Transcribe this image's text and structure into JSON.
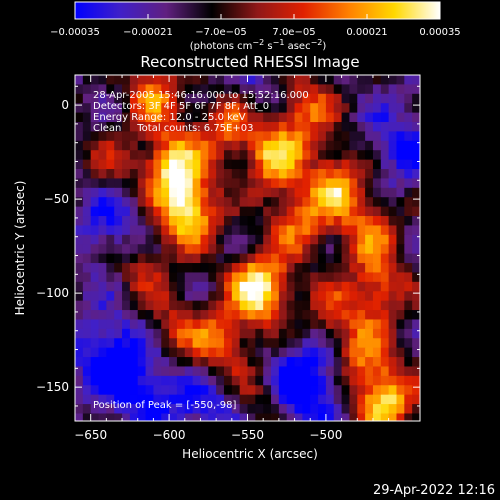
{
  "chart_data": {
    "type": "heatmap",
    "title": "Reconstructed RHESSI Image",
    "xlabel": "Heliocentric X (arcsec)",
    "ylabel": "Heliocentric Y (arcsec)",
    "xlim": [
      -660,
      -440
    ],
    "ylim": [
      -168,
      16
    ],
    "xticks": [
      -650,
      -600,
      -550,
      -500
    ],
    "yticks": [
      0,
      -50,
      -100,
      -150
    ],
    "colorbar": {
      "range": [
        -0.00035,
        0.00035
      ],
      "ticks": [
        "-0.00035",
        "-0.00021",
        "-7.0e-05",
        "7.0e-05",
        "0.00021",
        "0.00035"
      ],
      "unit_label": "(photons cm^-2 s^-1 asec^-2)",
      "colormap": [
        "#0000ff",
        "#4020c8",
        "#602080",
        "#000000",
        "#901818",
        "#e02000",
        "#ff8000",
        "#ffd800",
        "#ffffff"
      ]
    },
    "annotations": {
      "time_range": "28-Apr-2005 15:46:16.000 to 15:52:16.000",
      "detectors": "Detectors: 3F 4F 5F 6F 7F 8F, Att_0",
      "energy_range": "Energy Range: 12.0 - 25.0 keV",
      "method_counts": "Clean     Total counts: 6.75E+03",
      "peak": "Position of Peak = [-550,-98]"
    },
    "peak_position": [
      -550,
      -98
    ],
    "bright_regions": [
      {
        "x": -545,
        "y": -95,
        "level": 1.0
      },
      {
        "x": -590,
        "y": -55,
        "level": 0.9
      },
      {
        "x": -600,
        "y": -30,
        "level": 0.85
      },
      {
        "x": -612,
        "y": 8,
        "level": 0.55
      },
      {
        "x": -565,
        "y": -8,
        "level": 0.6
      },
      {
        "x": -535,
        "y": -25,
        "level": 0.75
      },
      {
        "x": -515,
        "y": 0,
        "level": 0.55
      },
      {
        "x": -520,
        "y": -60,
        "level": 0.55
      },
      {
        "x": -495,
        "y": -40,
        "level": 0.7
      },
      {
        "x": -475,
        "y": -65,
        "level": 0.5
      },
      {
        "x": -468,
        "y": -95,
        "level": 0.55
      },
      {
        "x": -465,
        "y": -155,
        "level": 0.85
      },
      {
        "x": -480,
        "y": -130,
        "level": 0.55
      },
      {
        "x": -500,
        "y": -110,
        "level": 0.45
      },
      {
        "x": -570,
        "y": -125,
        "level": 0.6
      },
      {
        "x": -600,
        "y": -118,
        "level": 0.4
      },
      {
        "x": -620,
        "y": -85,
        "level": 0.35
      },
      {
        "x": -640,
        "y": -30,
        "level": 0.3
      },
      {
        "x": -545,
        "y": -155,
        "level": 0.35
      }
    ],
    "dim_regions": [
      {
        "x": -640,
        "y": -130,
        "level": 0.9
      },
      {
        "x": -615,
        "y": -150,
        "level": 0.7
      },
      {
        "x": -520,
        "y": -150,
        "level": 0.8
      },
      {
        "x": -640,
        "y": -60,
        "level": 0.6
      },
      {
        "x": -455,
        "y": -20,
        "level": 0.6
      },
      {
        "x": -575,
        "y": -160,
        "level": 0.6
      },
      {
        "x": -505,
        "y": -135,
        "level": 0.5
      },
      {
        "x": -550,
        "y": 10,
        "level": 0.4
      }
    ]
  },
  "footer": {
    "datestamp": "29-Apr-2022 12:16"
  }
}
